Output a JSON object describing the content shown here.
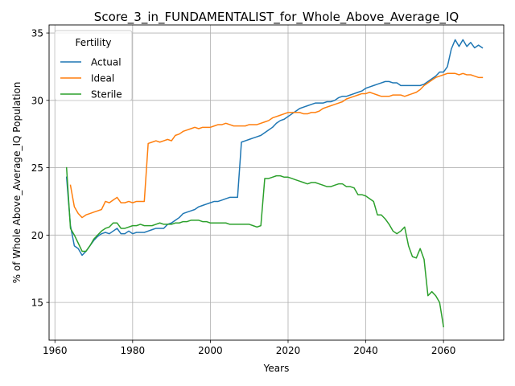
{
  "chart_data": {
    "type": "line",
    "title": "Score_3_in_FUNDAMENTALIST_for_Whole_Above_Average_IQ",
    "xlabel": "Years",
    "ylabel": "% of Whole Above_Average_IQ Population",
    "xlim": [
      1958.5,
      2075.5
    ],
    "ylim": [
      12.2,
      35.6
    ],
    "xticks": [
      1960,
      1980,
      2000,
      2020,
      2040,
      2060
    ],
    "yticks": [
      15,
      20,
      25,
      30,
      35
    ],
    "grid": true,
    "legend": {
      "title": "Fertility",
      "position": "top-left"
    },
    "series": [
      {
        "name": "Actual",
        "color": "#1f77b4",
        "x": [
          1963,
          1964,
          1965,
          1966,
          1967,
          1968,
          1969,
          1970,
          1971,
          1972,
          1973,
          1974,
          1975,
          1976,
          1977,
          1978,
          1979,
          1980,
          1981,
          1982,
          1983,
          1984,
          1985,
          1986,
          1987,
          1988,
          1989,
          1990,
          1991,
          1992,
          1993,
          1994,
          1995,
          1996,
          1997,
          1998,
          1999,
          2000,
          2001,
          2002,
          2003,
          2004,
          2005,
          2006,
          2007,
          2008,
          2009,
          2010,
          2011,
          2012,
          2013,
          2014,
          2015,
          2016,
          2017,
          2018,
          2019,
          2020,
          2021,
          2022,
          2023,
          2024,
          2025,
          2026,
          2027,
          2028,
          2029,
          2030,
          2031,
          2032,
          2033,
          2034,
          2035,
          2036,
          2037,
          2038,
          2039,
          2040,
          2041,
          2042,
          2043,
          2044,
          2045,
          2046,
          2047,
          2048,
          2049,
          2050,
          2051,
          2052,
          2053,
          2054,
          2055,
          2056,
          2057,
          2058,
          2059,
          2060,
          2061,
          2062,
          2063,
          2064,
          2065,
          2066,
          2067,
          2068,
          2069,
          2070
        ],
        "values": [
          24.3,
          20.7,
          19.2,
          19.0,
          18.5,
          18.8,
          19.2,
          19.6,
          19.9,
          20.1,
          20.2,
          20.1,
          20.3,
          20.5,
          20.1,
          20.1,
          20.3,
          20.1,
          20.2,
          20.2,
          20.2,
          20.3,
          20.4,
          20.5,
          20.5,
          20.5,
          20.8,
          20.9,
          21.1,
          21.3,
          21.6,
          21.7,
          21.8,
          21.9,
          22.1,
          22.2,
          22.3,
          22.4,
          22.5,
          22.5,
          22.6,
          22.7,
          22.8,
          22.8,
          22.8,
          26.9,
          27.0,
          27.1,
          27.2,
          27.3,
          27.4,
          27.6,
          27.8,
          28.0,
          28.3,
          28.5,
          28.6,
          28.8,
          29.0,
          29.2,
          29.4,
          29.5,
          29.6,
          29.7,
          29.8,
          29.8,
          29.8,
          29.9,
          29.9,
          30.0,
          30.2,
          30.3,
          30.3,
          30.4,
          30.5,
          30.6,
          30.7,
          30.9,
          31.0,
          31.1,
          31.2,
          31.3,
          31.4,
          31.4,
          31.3,
          31.3,
          31.1,
          31.1,
          31.1,
          31.1,
          31.1,
          31.1,
          31.2,
          31.4,
          31.6,
          31.8,
          32.1,
          32.1,
          32.5,
          33.8,
          34.5,
          34.0,
          34.5,
          34.0,
          34.3,
          33.9,
          34.1,
          33.9
        ]
      },
      {
        "name": "Ideal",
        "color": "#ff7f0e",
        "x": [
          1964,
          1965,
          1966,
          1967,
          1968,
          1969,
          1970,
          1971,
          1972,
          1973,
          1974,
          1975,
          1976,
          1977,
          1978,
          1979,
          1980,
          1981,
          1982,
          1983,
          1984,
          1985,
          1986,
          1987,
          1988,
          1989,
          1990,
          1991,
          1992,
          1993,
          1994,
          1995,
          1996,
          1997,
          1998,
          1999,
          2000,
          2001,
          2002,
          2003,
          2004,
          2005,
          2006,
          2007,
          2008,
          2009,
          2010,
          2011,
          2012,
          2013,
          2014,
          2015,
          2016,
          2017,
          2018,
          2019,
          2020,
          2021,
          2022,
          2023,
          2024,
          2025,
          2026,
          2027,
          2028,
          2029,
          2030,
          2031,
          2032,
          2033,
          2034,
          2035,
          2036,
          2037,
          2038,
          2039,
          2040,
          2041,
          2042,
          2043,
          2044,
          2045,
          2046,
          2047,
          2048,
          2049,
          2050,
          2051,
          2052,
          2053,
          2054,
          2055,
          2056,
          2057,
          2058,
          2059,
          2060,
          2061,
          2062,
          2063,
          2064,
          2065,
          2066,
          2067,
          2068,
          2069,
          2070
        ],
        "values": [
          23.7,
          22.1,
          21.6,
          21.3,
          21.5,
          21.6,
          21.7,
          21.8,
          21.9,
          22.5,
          22.4,
          22.6,
          22.8,
          22.4,
          22.4,
          22.5,
          22.4,
          22.5,
          22.5,
          22.5,
          26.8,
          26.9,
          27.0,
          26.9,
          27.0,
          27.1,
          27.0,
          27.4,
          27.5,
          27.7,
          27.8,
          27.9,
          28.0,
          27.9,
          28.0,
          28.0,
          28.0,
          28.1,
          28.2,
          28.2,
          28.3,
          28.2,
          28.1,
          28.1,
          28.1,
          28.1,
          28.2,
          28.2,
          28.2,
          28.3,
          28.4,
          28.5,
          28.7,
          28.8,
          28.9,
          29.0,
          29.1,
          29.1,
          29.1,
          29.1,
          29.0,
          29.0,
          29.1,
          29.1,
          29.2,
          29.4,
          29.5,
          29.6,
          29.7,
          29.8,
          29.9,
          30.1,
          30.2,
          30.3,
          30.4,
          30.5,
          30.5,
          30.6,
          30.5,
          30.4,
          30.3,
          30.3,
          30.3,
          30.4,
          30.4,
          30.4,
          30.3,
          30.4,
          30.5,
          30.6,
          30.8,
          31.1,
          31.3,
          31.5,
          31.7,
          31.8,
          31.9,
          32.0,
          32.0,
          32.0,
          31.9,
          32.0,
          31.9,
          31.9,
          31.8,
          31.7,
          31.7
        ]
      },
      {
        "name": "Sterile",
        "color": "#2ca02c",
        "x": [
          1963,
          1964,
          1965,
          1966,
          1967,
          1968,
          1969,
          1970,
          1971,
          1972,
          1973,
          1974,
          1975,
          1976,
          1977,
          1978,
          1979,
          1980,
          1981,
          1982,
          1983,
          1984,
          1985,
          1986,
          1987,
          1988,
          1989,
          1990,
          1991,
          1992,
          1993,
          1994,
          1995,
          1996,
          1997,
          1998,
          1999,
          2000,
          2001,
          2002,
          2003,
          2004,
          2005,
          2006,
          2007,
          2008,
          2009,
          2010,
          2011,
          2012,
          2013,
          2014,
          2015,
          2016,
          2017,
          2018,
          2019,
          2020,
          2021,
          2022,
          2023,
          2024,
          2025,
          2026,
          2027,
          2028,
          2029,
          2030,
          2031,
          2032,
          2033,
          2034,
          2035,
          2036,
          2037,
          2038,
          2039,
          2040,
          2041,
          2042,
          2043,
          2044,
          2045,
          2046,
          2047,
          2048,
          2049,
          2050,
          2051,
          2052,
          2053,
          2054,
          2055,
          2056,
          2057,
          2058,
          2059,
          2060
        ],
        "values": [
          25.0,
          20.5,
          20.0,
          19.4,
          18.8,
          18.8,
          19.2,
          19.7,
          20.0,
          20.3,
          20.5,
          20.6,
          20.9,
          20.9,
          20.5,
          20.5,
          20.6,
          20.7,
          20.7,
          20.8,
          20.7,
          20.7,
          20.7,
          20.8,
          20.9,
          20.8,
          20.8,
          20.8,
          20.9,
          20.9,
          21.0,
          21.0,
          21.1,
          21.1,
          21.1,
          21.0,
          21.0,
          20.9,
          20.9,
          20.9,
          20.9,
          20.9,
          20.8,
          20.8,
          20.8,
          20.8,
          20.8,
          20.8,
          20.7,
          20.6,
          20.7,
          24.2,
          24.2,
          24.3,
          24.4,
          24.4,
          24.3,
          24.3,
          24.2,
          24.1,
          24.0,
          23.9,
          23.8,
          23.9,
          23.9,
          23.8,
          23.7,
          23.6,
          23.6,
          23.7,
          23.8,
          23.8,
          23.6,
          23.6,
          23.5,
          23.0,
          23.0,
          22.9,
          22.7,
          22.5,
          21.5,
          21.5,
          21.2,
          20.8,
          20.3,
          20.1,
          20.3,
          20.6,
          19.2,
          18.4,
          18.3,
          19.0,
          18.2,
          15.5,
          15.8,
          15.5,
          15.0,
          13.2
        ]
      }
    ]
  }
}
